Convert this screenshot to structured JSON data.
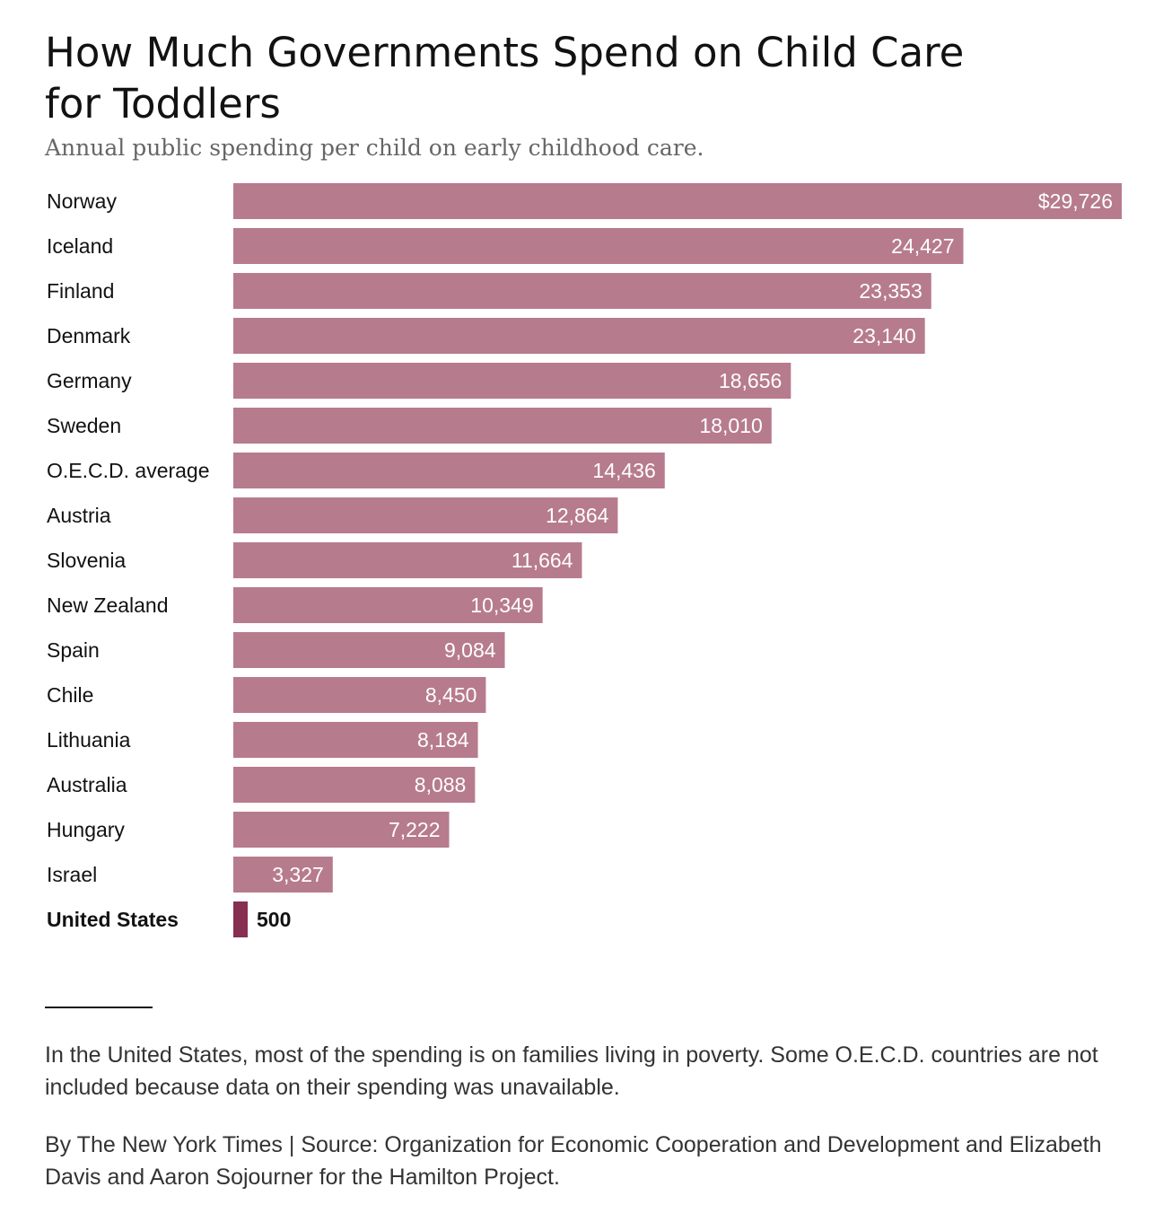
{
  "header": {
    "title": "How Much Governments Spend on Child Care for Toddlers",
    "subtitle": "Annual public spending per child on early childhood care."
  },
  "chart_data": {
    "type": "bar",
    "orientation": "horizontal",
    "categories": [
      "Norway",
      "Iceland",
      "Finland",
      "Denmark",
      "Germany",
      "Sweden",
      "O.E.C.D. average",
      "Austria",
      "Slovenia",
      "New Zealand",
      "Spain",
      "Chile",
      "Lithuania",
      "Australia",
      "Hungary",
      "Israel",
      "United States"
    ],
    "values": [
      29726,
      24427,
      23353,
      23140,
      18656,
      18010,
      14436,
      12864,
      11664,
      10349,
      9084,
      8450,
      8184,
      8088,
      7222,
      3327,
      500
    ],
    "value_labels": [
      "$29,726",
      "24,427",
      "23,353",
      "23,140",
      "18,656",
      "18,010",
      "14,436",
      "12,864",
      "11,664",
      "10,349",
      "9,084",
      "8,450",
      "8,184",
      "8,088",
      "7,222",
      "3,327",
      "500"
    ],
    "highlight": "United States",
    "xlim": [
      0,
      29726
    ],
    "grid": false,
    "colors": {
      "bar": "#b77b8e",
      "highlight": "#862f50",
      "label_inside": "#ffffff",
      "label_outside": "#121212"
    }
  },
  "footer": {
    "note": "In the United States, most of the spending is on families living in poverty. Some O.E.C.D. countries are not included because data on their spending was unavailable.",
    "source": "By The New York Times | Source: Organization for Economic Cooperation and Development and Elizabeth Davis and Aaron Sojourner for the Hamilton Project."
  }
}
